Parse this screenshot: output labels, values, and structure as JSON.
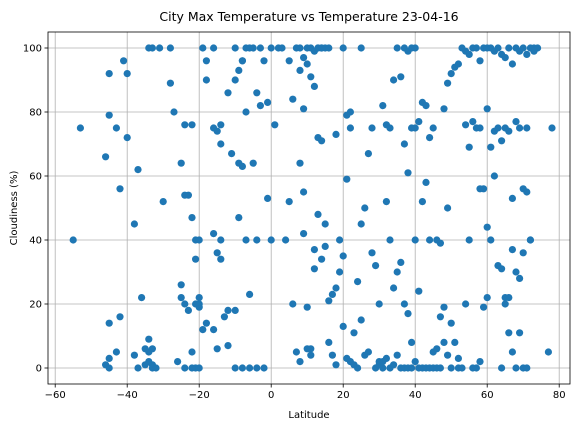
{
  "chart_data": {
    "type": "scatter",
    "title": "City Max Temperature vs Temperature  23-04-16",
    "xlabel": "Latitude",
    "ylabel": "Cloudiness (%)",
    "xlim": [
      -62,
      83
    ],
    "ylim": [
      -5,
      105
    ],
    "xticks": [
      -60,
      -40,
      -20,
      0,
      20,
      40,
      60,
      80
    ],
    "yticks": [
      0,
      20,
      40,
      60,
      80,
      100
    ],
    "xtick_labels": [
      "−60",
      "−40",
      "−20",
      "0",
      "20",
      "40",
      "60",
      "80"
    ],
    "ytick_labels": [
      "0",
      "20",
      "40",
      "60",
      "80",
      "100"
    ],
    "grid": true,
    "marker_color": "#1f77b4",
    "points": [
      [
        -55,
        40
      ],
      [
        -53,
        75
      ],
      [
        -46,
        66
      ],
      [
        -45,
        79
      ],
      [
        -45,
        92
      ],
      [
        -43,
        75
      ],
      [
        -42,
        56
      ],
      [
        -41,
        96
      ],
      [
        -40,
        92
      ],
      [
        -40,
        72
      ],
      [
        -38,
        45
      ],
      [
        -37,
        62
      ],
      [
        -36,
        22
      ],
      [
        -45,
        14
      ],
      [
        -46,
        1
      ],
      [
        -45,
        0
      ],
      [
        -45,
        3
      ],
      [
        -43,
        5
      ],
      [
        -42,
        16
      ],
      [
        -38,
        4
      ],
      [
        -37,
        0
      ],
      [
        -35,
        1
      ],
      [
        -34,
        2
      ],
      [
        -34,
        5
      ],
      [
        -33,
        1
      ],
      [
        -33,
        6
      ],
      [
        -33,
        0
      ],
      [
        -32,
        0
      ],
      [
        -30,
        52
      ],
      [
        -34,
        9
      ],
      [
        -35,
        6
      ],
      [
        -34,
        100
      ],
      [
        -33,
        100
      ],
      [
        -31,
        100
      ],
      [
        -28,
        100
      ],
      [
        -28,
        89
      ],
      [
        -27,
        80
      ],
      [
        -26,
        2
      ],
      [
        -25,
        26
      ],
      [
        -24,
        54
      ],
      [
        -23,
        54
      ],
      [
        -24,
        76
      ],
      [
        -22,
        76
      ],
      [
        -22,
        47
      ],
      [
        -21,
        40
      ],
      [
        -21,
        34
      ],
      [
        -20,
        40
      ],
      [
        -20,
        19
      ],
      [
        -20,
        20
      ],
      [
        -19,
        100
      ],
      [
        -18,
        96
      ],
      [
        -18,
        90
      ],
      [
        -16,
        100
      ],
      [
        -16,
        75
      ],
      [
        -15,
        74
      ],
      [
        -14,
        76
      ],
      [
        -14,
        70
      ],
      [
        -12,
        86
      ],
      [
        -10,
        100
      ],
      [
        -10,
        90
      ],
      [
        -9,
        93
      ],
      [
        -8,
        96
      ],
      [
        -8,
        96
      ],
      [
        -7,
        100
      ],
      [
        -7,
        80
      ],
      [
        -6,
        100
      ],
      [
        -5,
        100
      ],
      [
        -4,
        86
      ],
      [
        -3,
        82
      ],
      [
        -3,
        100
      ],
      [
        -2,
        96
      ],
      [
        -1,
        83
      ],
      [
        0,
        100
      ],
      [
        -25,
        64
      ],
      [
        -25,
        22
      ],
      [
        -24,
        20
      ],
      [
        -24,
        0
      ],
      [
        -22,
        5
      ],
      [
        -21,
        0
      ],
      [
        -20,
        0
      ],
      [
        -19,
        12
      ],
      [
        -18,
        14
      ],
      [
        -16,
        42
      ],
      [
        -15,
        36
      ],
      [
        -14,
        34
      ],
      [
        -14,
        40
      ],
      [
        -13,
        16
      ],
      [
        -12,
        7
      ],
      [
        -11,
        67
      ],
      [
        -10,
        18
      ],
      [
        -9,
        47
      ],
      [
        -9,
        64
      ],
      [
        -8,
        63
      ],
      [
        -7,
        40
      ],
      [
        -6,
        23
      ],
      [
        -5,
        64
      ],
      [
        -4,
        40
      ],
      [
        -23,
        18
      ],
      [
        -22,
        0
      ],
      [
        -21,
        20
      ],
      [
        -20,
        22
      ],
      [
        -15,
        6
      ],
      [
        -12,
        18
      ],
      [
        -16,
        12
      ],
      [
        -10,
        0
      ],
      [
        -8,
        0
      ],
      [
        -6,
        0
      ],
      [
        -4,
        0
      ],
      [
        -2,
        0
      ],
      [
        -1,
        53
      ],
      [
        0,
        40
      ],
      [
        1,
        76
      ],
      [
        2,
        100
      ],
      [
        3,
        100
      ],
      [
        5,
        96
      ],
      [
        6,
        84
      ],
      [
        7,
        100
      ],
      [
        8,
        100
      ],
      [
        9,
        97
      ],
      [
        10,
        100
      ],
      [
        11,
        100
      ],
      [
        12,
        99
      ],
      [
        13,
        100
      ],
      [
        14,
        100
      ],
      [
        15,
        100
      ],
      [
        4,
        40
      ],
      [
        5,
        52
      ],
      [
        6,
        20
      ],
      [
        7,
        5
      ],
      [
        8,
        2
      ],
      [
        9,
        55
      ],
      [
        10,
        19
      ],
      [
        11,
        6
      ],
      [
        12,
        37
      ],
      [
        13,
        72
      ],
      [
        14,
        71
      ],
      [
        15,
        45
      ],
      [
        16,
        21
      ],
      [
        17,
        23
      ],
      [
        18,
        25
      ],
      [
        19,
        30
      ],
      [
        20,
        35
      ],
      [
        21,
        59
      ],
      [
        22,
        80
      ],
      [
        23,
        11
      ],
      [
        24,
        27
      ],
      [
        25,
        45
      ],
      [
        26,
        50
      ],
      [
        27,
        67
      ],
      [
        8,
        64
      ],
      [
        9,
        42
      ],
      [
        10,
        6
      ],
      [
        11,
        4
      ],
      [
        12,
        31
      ],
      [
        13,
        48
      ],
      [
        14,
        34
      ],
      [
        15,
        38
      ],
      [
        16,
        8
      ],
      [
        17,
        4
      ],
      [
        18,
        1
      ],
      [
        19,
        40
      ],
      [
        20,
        13
      ],
      [
        21,
        3
      ],
      [
        22,
        2
      ],
      [
        23,
        1
      ],
      [
        24,
        0
      ],
      [
        25,
        15
      ],
      [
        26,
        4
      ],
      [
        27,
        5
      ],
      [
        8,
        93
      ],
      [
        9,
        81
      ],
      [
        10,
        95
      ],
      [
        11,
        91
      ],
      [
        12,
        88
      ],
      [
        13,
        100
      ],
      [
        14,
        100
      ],
      [
        16,
        100
      ],
      [
        18,
        73
      ],
      [
        20,
        100
      ],
      [
        21,
        79
      ],
      [
        22,
        75
      ],
      [
        25,
        100
      ],
      [
        28,
        75
      ],
      [
        30,
        2
      ],
      [
        31,
        82
      ],
      [
        32,
        76
      ],
      [
        33,
        75
      ],
      [
        34,
        90
      ],
      [
        35,
        100
      ],
      [
        36,
        91
      ],
      [
        37,
        100
      ],
      [
        38,
        99
      ],
      [
        39,
        100
      ],
      [
        40,
        100
      ],
      [
        28,
        36
      ],
      [
        29,
        32
      ],
      [
        30,
        20
      ],
      [
        31,
        0
      ],
      [
        32,
        52
      ],
      [
        33,
        40
      ],
      [
        34,
        25
      ],
      [
        35,
        30
      ],
      [
        36,
        33
      ],
      [
        37,
        20
      ],
      [
        38,
        17
      ],
      [
        39,
        8
      ],
      [
        40,
        40
      ],
      [
        41,
        24
      ],
      [
        42,
        52
      ],
      [
        43,
        58
      ],
      [
        44,
        40
      ],
      [
        45,
        5
      ],
      [
        46,
        6
      ],
      [
        47,
        16
      ],
      [
        48,
        19
      ],
      [
        49,
        50
      ],
      [
        50,
        14
      ],
      [
        51,
        8
      ],
      [
        29,
        0
      ],
      [
        30,
        1
      ],
      [
        31,
        2
      ],
      [
        32,
        3
      ],
      [
        33,
        0
      ],
      [
        34,
        1
      ],
      [
        35,
        4
      ],
      [
        36,
        0
      ],
      [
        37,
        0
      ],
      [
        38,
        0
      ],
      [
        39,
        0
      ],
      [
        40,
        2
      ],
      [
        41,
        0
      ],
      [
        42,
        0
      ],
      [
        43,
        0
      ],
      [
        44,
        0
      ],
      [
        45,
        0
      ],
      [
        46,
        0
      ],
      [
        47,
        0
      ],
      [
        48,
        8
      ],
      [
        49,
        4
      ],
      [
        50,
        0
      ],
      [
        52,
        0
      ],
      [
        53,
        0
      ],
      [
        37,
        70
      ],
      [
        38,
        61
      ],
      [
        39,
        75
      ],
      [
        40,
        75
      ],
      [
        41,
        77
      ],
      [
        42,
        83
      ],
      [
        43,
        82
      ],
      [
        44,
        72
      ],
      [
        45,
        75
      ],
      [
        46,
        40
      ],
      [
        47,
        39
      ],
      [
        48,
        81
      ],
      [
        49,
        89
      ],
      [
        50,
        92
      ],
      [
        51,
        94
      ],
      [
        52,
        95
      ],
      [
        53,
        100
      ],
      [
        54,
        76
      ],
      [
        55,
        69
      ],
      [
        56,
        77
      ],
      [
        57,
        75
      ],
      [
        58,
        75
      ],
      [
        59,
        56
      ],
      [
        60,
        44
      ],
      [
        52,
        3
      ],
      [
        54,
        20
      ],
      [
        55,
        40
      ],
      [
        56,
        0
      ],
      [
        57,
        0
      ],
      [
        58,
        2
      ],
      [
        59,
        19
      ],
      [
        60,
        22
      ],
      [
        61,
        40
      ],
      [
        62,
        60
      ],
      [
        63,
        32
      ],
      [
        64,
        31
      ],
      [
        65,
        22
      ],
      [
        66,
        11
      ],
      [
        67,
        5
      ],
      [
        68,
        30
      ],
      [
        69,
        28
      ],
      [
        70,
        36
      ],
      [
        71,
        55
      ],
      [
        72,
        40
      ],
      [
        73,
        100
      ],
      [
        74,
        100
      ],
      [
        77,
        5
      ],
      [
        78,
        75
      ],
      [
        54,
        99
      ],
      [
        55,
        98
      ],
      [
        56,
        100
      ],
      [
        57,
        100
      ],
      [
        58,
        96
      ],
      [
        59,
        100
      ],
      [
        60,
        100
      ],
      [
        61,
        100
      ],
      [
        62,
        99
      ],
      [
        63,
        100
      ],
      [
        64,
        98
      ],
      [
        65,
        97
      ],
      [
        66,
        100
      ],
      [
        67,
        95
      ],
      [
        68,
        100
      ],
      [
        69,
        99
      ],
      [
        70,
        100
      ],
      [
        71,
        98
      ],
      [
        72,
        100
      ],
      [
        73,
        99
      ],
      [
        58,
        56
      ],
      [
        60,
        81
      ],
      [
        61,
        69
      ],
      [
        62,
        74
      ],
      [
        63,
        75
      ],
      [
        64,
        71
      ],
      [
        65,
        75
      ],
      [
        66,
        74
      ],
      [
        67,
        53
      ],
      [
        68,
        77
      ],
      [
        69,
        75
      ],
      [
        70,
        56
      ],
      [
        71,
        75
      ],
      [
        72,
        40
      ],
      [
        64,
        0
      ],
      [
        65,
        20
      ],
      [
        66,
        22
      ],
      [
        67,
        37
      ],
      [
        68,
        0
      ],
      [
        69,
        11
      ],
      [
        70,
        0
      ],
      [
        71,
        0
      ]
    ]
  }
}
